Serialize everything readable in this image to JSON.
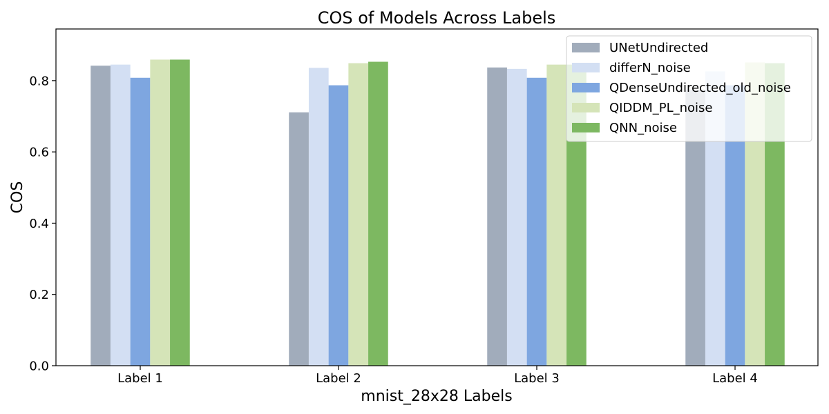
{
  "chart_data": {
    "type": "bar",
    "title": "COS of Models Across Labels",
    "xlabel": "mnist_28x28 Labels",
    "ylabel": "COS",
    "categories": [
      "Label 1",
      "Label 2",
      "Label 3",
      "Label 4"
    ],
    "ylim": [
      0,
      0.945
    ],
    "yticks": [
      "0.0",
      "0.2",
      "0.4",
      "0.6",
      "0.8"
    ],
    "ytick_values": [
      0.0,
      0.2,
      0.4,
      0.6,
      0.8
    ],
    "grid": false,
    "legend_position": "top-right",
    "series": [
      {
        "name": "UNetUndirected",
        "color": "#a1acbb",
        "values": [
          0.842,
          0.711,
          0.837,
          0.775
        ]
      },
      {
        "name": "differN_noise",
        "color": "#d3dff3",
        "values": [
          0.845,
          0.836,
          0.833,
          0.826
        ]
      },
      {
        "name": "QDenseUndirected_old_noise",
        "color": "#7ea6e0",
        "values": [
          0.808,
          0.787,
          0.808,
          0.787
        ]
      },
      {
        "name": "QIDDM_PL_noise",
        "color": "#d5e4b8",
        "values": [
          0.859,
          0.849,
          0.845,
          0.851
        ]
      },
      {
        "name": "QNN_noise",
        "color": "#7db861",
        "values": [
          0.859,
          0.853,
          0.845,
          0.849
        ]
      }
    ]
  }
}
